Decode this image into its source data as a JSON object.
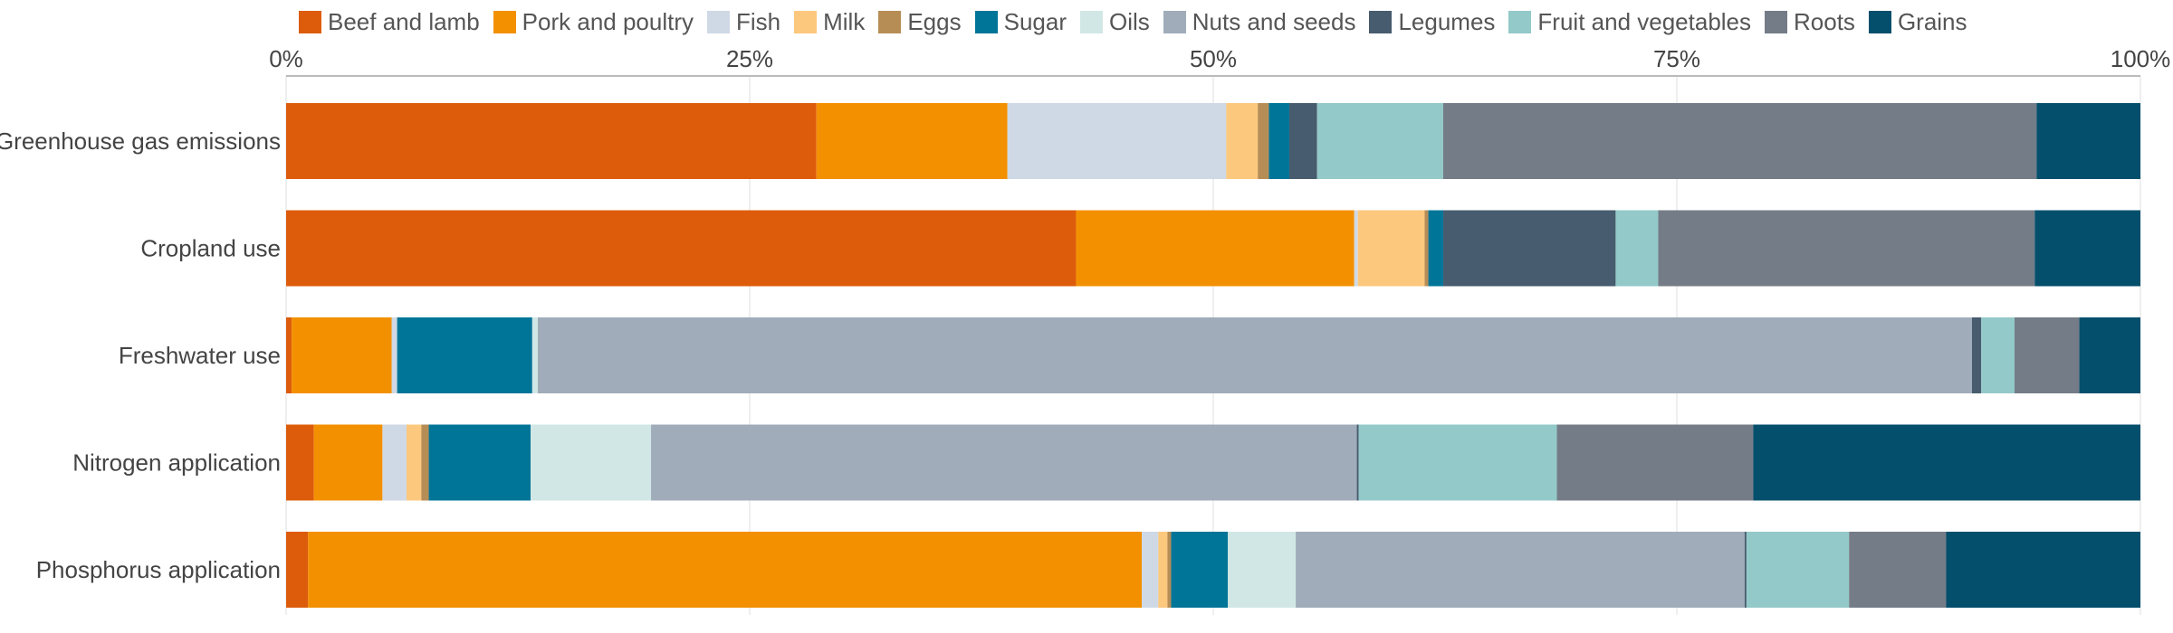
{
  "chart_data": {
    "type": "bar",
    "orientation": "horizontal",
    "stacked": "percent",
    "title": "",
    "xlabel": "",
    "ylabel": "",
    "xlim": [
      0,
      100
    ],
    "x_ticks": [
      "0%",
      "25%",
      "50%",
      "75%",
      "100%"
    ],
    "x_axis_position": "top",
    "grid": true,
    "legend_position": "top",
    "categories": [
      "Greenhouse gas emissions",
      "Cropland use",
      "Freshwater use",
      "Nitrogen application",
      "Phosphorus application"
    ],
    "series": [
      {
        "name": "Beef and lamb",
        "color": "#dd5c0b",
        "values": [
          28.6,
          42.6,
          0.3,
          1.5,
          1.2
        ]
      },
      {
        "name": "Pork and poultry",
        "color": "#f39000",
        "values": [
          10.3,
          15.0,
          5.4,
          3.7,
          45.5
        ]
      },
      {
        "name": "Fish",
        "color": "#cfd9e5",
        "values": [
          11.8,
          0.2,
          0.3,
          1.3,
          0.9
        ]
      },
      {
        "name": "Milk",
        "color": "#fcc87d",
        "values": [
          1.7,
          3.6,
          0.0,
          0.8,
          0.5
        ]
      },
      {
        "name": "Eggs",
        "color": "#b78d56",
        "values": [
          0.6,
          0.2,
          0.0,
          0.4,
          0.2
        ]
      },
      {
        "name": "Sugar",
        "color": "#007598",
        "values": [
          1.1,
          0.8,
          7.3,
          5.5,
          3.1
        ]
      },
      {
        "name": "Oils",
        "color": "#d1e7e5",
        "values": [
          0.0,
          0.0,
          0.3,
          6.5,
          3.7
        ]
      },
      {
        "name": "Nuts and seeds",
        "color": "#a0acb9",
        "values": [
          0.0,
          0.0,
          77.5,
          38.1,
          24.5
        ]
      },
      {
        "name": "Legumes",
        "color": "#475c6e",
        "values": [
          1.5,
          9.3,
          0.5,
          0.1,
          0.1
        ]
      },
      {
        "name": "Fruit and vegetables",
        "color": "#93c9c8",
        "values": [
          6.8,
          2.3,
          1.8,
          10.7,
          5.6
        ]
      },
      {
        "name": "Roots",
        "color": "#747c87",
        "values": [
          32.0,
          20.3,
          3.5,
          10.6,
          5.3
        ]
      },
      {
        "name": "Grains",
        "color": "#034f6c",
        "values": [
          5.6,
          5.7,
          3.3,
          20.9,
          10.6
        ]
      }
    ]
  }
}
